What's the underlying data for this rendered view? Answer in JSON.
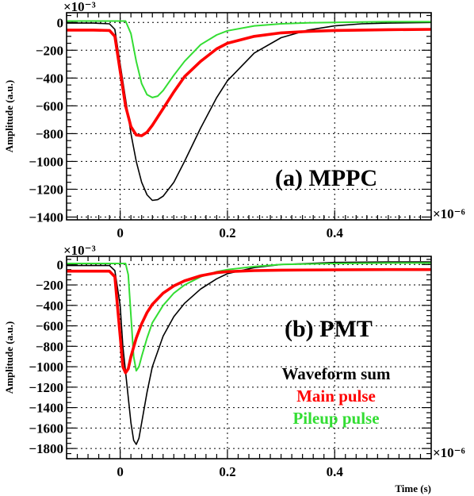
{
  "figure_labels": {
    "y_exponent_top": "×10⁻³",
    "y_exponent_bottom": "×10⁻³",
    "x_exponent_top": "×10⁻⁶",
    "x_exponent_bottom": "×10⁻⁶"
  },
  "legend": {
    "waveform_sum": "Waveform sum",
    "main_pulse": "Main pulse",
    "pileup_pulse": "Pileup pulse"
  },
  "colors": {
    "waveform_sum": "#000000",
    "main_pulse": "#ff0000",
    "pileup_pulse": "#33dd33"
  },
  "chart_data": [
    {
      "type": "line",
      "title": "(a) MPPC",
      "xlabel": "",
      "ylabel": "Amplitude (a.u.)",
      "xlim": [
        -0.1,
        0.58
      ],
      "ylim": [
        -1420,
        70
      ],
      "x_ticks": [
        0,
        0.2,
        0.4
      ],
      "x_tick_labels": [
        "0",
        "0.2",
        "0.4"
      ],
      "y_ticks": [
        0,
        -200,
        -400,
        -600,
        -800,
        -1000,
        -1200,
        -1400
      ],
      "y_tick_labels": [
        "0",
        "−200",
        "−400",
        "−600",
        "−800",
        "−1000",
        "−1200",
        "−1400"
      ],
      "grid": true,
      "series": [
        {
          "name": "Waveform sum",
          "x": [
            -0.1,
            -0.05,
            -0.02,
            -0.01,
            0,
            0.01,
            0.02,
            0.03,
            0.04,
            0.05,
            0.06,
            0.07,
            0.08,
            0.1,
            0.12,
            0.15,
            0.18,
            0.2,
            0.25,
            0.3,
            0.35,
            0.4,
            0.45,
            0.5,
            0.58
          ],
          "y": [
            -5,
            -5,
            -10,
            -50,
            -300,
            -550,
            -800,
            -1000,
            -1150,
            -1240,
            -1280,
            -1275,
            -1250,
            -1150,
            -1000,
            -760,
            -540,
            -420,
            -220,
            -110,
            -55,
            -25,
            -10,
            -5,
            0
          ]
        },
        {
          "name": "Main pulse",
          "x": [
            -0.1,
            -0.05,
            -0.02,
            -0.01,
            0,
            0.01,
            0.02,
            0.03,
            0.04,
            0.05,
            0.06,
            0.07,
            0.08,
            0.1,
            0.12,
            0.15,
            0.18,
            0.2,
            0.25,
            0.3,
            0.35,
            0.4,
            0.45,
            0.5,
            0.58
          ],
          "y": [
            -55,
            -55,
            -58,
            -100,
            -350,
            -600,
            -750,
            -810,
            -815,
            -790,
            -740,
            -680,
            -620,
            -500,
            -390,
            -280,
            -190,
            -150,
            -100,
            -75,
            -65,
            -58,
            -55,
            -52,
            -50
          ]
        },
        {
          "name": "Pileup pulse",
          "x": [
            -0.1,
            -0.05,
            0,
            0.01,
            0.02,
            0.03,
            0.04,
            0.05,
            0.06,
            0.07,
            0.08,
            0.1,
            0.12,
            0.15,
            0.18,
            0.2,
            0.25,
            0.3,
            0.35,
            0.4,
            0.45,
            0.5,
            0.58
          ],
          "y": [
            10,
            10,
            10,
            10,
            -80,
            -280,
            -440,
            -520,
            -540,
            -530,
            -490,
            -380,
            -280,
            -160,
            -90,
            -60,
            -25,
            -10,
            -3,
            0,
            3,
            5,
            5
          ]
        }
      ]
    },
    {
      "type": "line",
      "title": "(b) PMT",
      "xlabel": "Time (s)",
      "ylabel": "Amplitude (a.u.)",
      "xlim": [
        -0.1,
        0.58
      ],
      "ylim": [
        -1900,
        80
      ],
      "x_ticks": [
        0,
        0.2,
        0.4
      ],
      "x_tick_labels": [
        "0",
        "0.2",
        "0.4"
      ],
      "y_ticks": [
        0,
        -200,
        -400,
        -600,
        -800,
        -1000,
        -1200,
        -1400,
        -1600,
        -1800
      ],
      "y_tick_labels": [
        "0",
        "−200",
        "−400",
        "−600",
        "−800",
        "−1000",
        "−1200",
        "−1400",
        "−1600",
        "−1800"
      ],
      "grid": true,
      "series": [
        {
          "name": "Waveform sum",
          "x": [
            -0.1,
            -0.02,
            -0.01,
            0,
            0.005,
            0.01,
            0.015,
            0.02,
            0.025,
            0.03,
            0.035,
            0.04,
            0.05,
            0.06,
            0.08,
            0.1,
            0.12,
            0.15,
            0.18,
            0.2,
            0.25,
            0.3,
            0.4,
            0.5,
            0.58
          ],
          "y": [
            -10,
            -10,
            -60,
            -400,
            -800,
            -1050,
            -1300,
            -1550,
            -1720,
            -1760,
            -1700,
            -1550,
            -1250,
            -1000,
            -700,
            -510,
            -380,
            -240,
            -140,
            -90,
            -30,
            0,
            20,
            25,
            25
          ]
        },
        {
          "name": "Main pulse",
          "x": [
            -0.1,
            -0.02,
            -0.01,
            0,
            0.005,
            0.01,
            0.015,
            0.02,
            0.03,
            0.04,
            0.05,
            0.06,
            0.08,
            0.1,
            0.12,
            0.15,
            0.18,
            0.2,
            0.25,
            0.3,
            0.4,
            0.5,
            0.58
          ],
          "y": [
            -65,
            -65,
            -120,
            -700,
            -1000,
            -1060,
            -1020,
            -900,
            -720,
            -580,
            -470,
            -390,
            -280,
            -210,
            -160,
            -110,
            -80,
            -70,
            -60,
            -55,
            -52,
            -50,
            -50
          ]
        },
        {
          "name": "Pileup pulse",
          "x": [
            -0.1,
            -0.02,
            0,
            0.01,
            0.015,
            0.02,
            0.025,
            0.03,
            0.035,
            0.04,
            0.05,
            0.06,
            0.08,
            0.1,
            0.12,
            0.15,
            0.18,
            0.2,
            0.25,
            0.3,
            0.4,
            0.5,
            0.58
          ],
          "y": [
            10,
            10,
            10,
            10,
            -100,
            -500,
            -900,
            -1040,
            -1000,
            -900,
            -720,
            -570,
            -400,
            -280,
            -200,
            -120,
            -70,
            -50,
            -20,
            0,
            10,
            15,
            15
          ]
        }
      ]
    }
  ]
}
